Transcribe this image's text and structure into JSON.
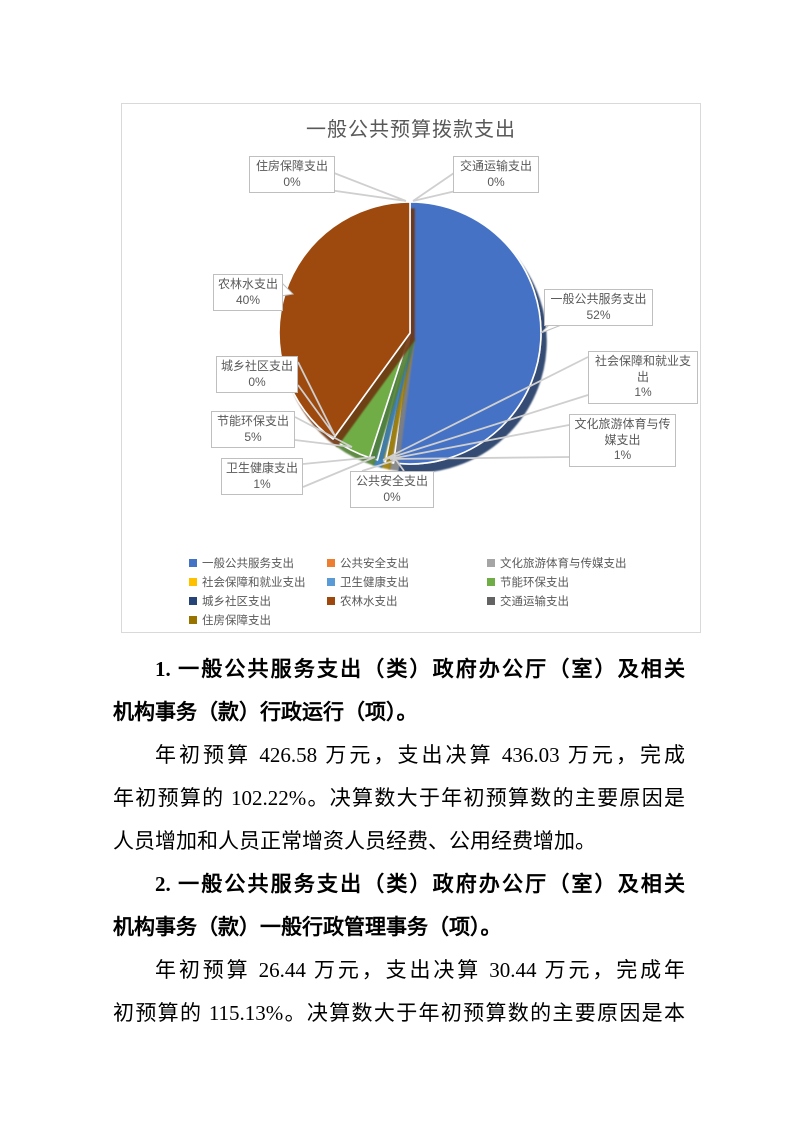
{
  "chart_data": {
    "type": "pie",
    "title": "一般公共预算拨款支出",
    "legend_position": "bottom",
    "legend_columns": 3,
    "series": [
      {
        "label": "一般公共服务支出",
        "pct": 52,
        "pct_label": "52%",
        "color": "#4472C4",
        "shadow": "#1F3864"
      },
      {
        "label": "公共安全支出",
        "pct": 0,
        "pct_label": "0%",
        "color": "#ED7D31",
        "shadow": null
      },
      {
        "label": "文化旅游体育与传媒支出",
        "pct": 1,
        "pct_label": "1%",
        "color": "#A5A5A5",
        "shadow": "#7F7F7F"
      },
      {
        "label": "社会保障和就业支出",
        "pct": 1,
        "pct_label": "1%",
        "color": "#FFC000",
        "shadow": "#9C7A00"
      },
      {
        "label": "卫生健康支出",
        "pct": 1,
        "pct_label": "1%",
        "color": "#5B9BD5",
        "shadow": "#2E75B6"
      },
      {
        "label": "节能环保支出",
        "pct": 5,
        "pct_label": "5%",
        "color": "#70AD47",
        "shadow": "#507E32"
      },
      {
        "label": "城乡社区支出",
        "pct": 0,
        "pct_label": "0%",
        "color": "#264478",
        "shadow": null
      },
      {
        "label": "农林水支出",
        "pct": 40,
        "pct_label": "40%",
        "color": "#9E480E",
        "shadow": "#6E3410"
      },
      {
        "label": "交通运输支出",
        "pct": 0,
        "pct_label": "0%",
        "color": "#636363",
        "shadow": null
      },
      {
        "label": "住房保障支出",
        "pct": 0,
        "pct_label": "0%",
        "color": "#997300",
        "shadow": null
      }
    ]
  },
  "body": {
    "lines": [
      {
        "text": "1. 一般公共服务支出（类）政府办公厅（室）及相关"
      },
      {
        "text": "机构事务（款）行政运行（项）。"
      },
      {
        "text": "年初预算 426.58 万元，支出决算 436.03 万元，完成"
      },
      {
        "text": "年初预算的 102.22%。决算数大于年初预算数的主要原因是"
      },
      {
        "text": "人员增加和人员正常增资人员经费、公用经费增加。"
      },
      {
        "text": "2. 一般公共服务支出（类）政府办公厅（室）及相关"
      },
      {
        "text": "机构事务（款）一般行政管理事务（项）。"
      },
      {
        "text": "年初预算 26.44 万元，支出决算 30.44 万元，完成年"
      },
      {
        "text": "初预算的 115.13%。决算数大于年初预算数的主要原因是本"
      }
    ]
  }
}
